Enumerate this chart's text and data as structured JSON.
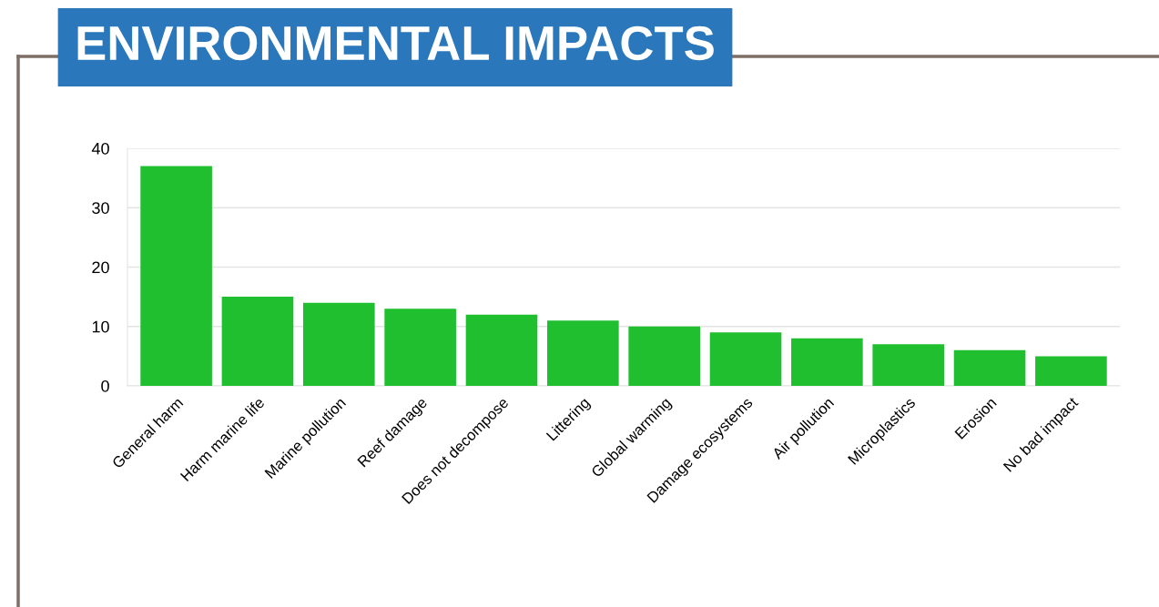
{
  "chart_data": {
    "type": "bar",
    "title": "ENVIRONMENTAL IMPACTS",
    "categories": [
      "General harm",
      "Harm marine life",
      "Marine pollution",
      "Reef damage",
      "Does not decompose",
      "Littering",
      "Global warming",
      "Damage ecosystems",
      "Air pollution",
      "Microplastics",
      "Erosion",
      "No bad impact"
    ],
    "values": [
      37,
      15,
      14,
      13,
      12,
      11,
      10,
      9,
      8,
      7,
      6,
      5
    ],
    "color": "#1fbf2f",
    "ylim": [
      0,
      40
    ],
    "yticks": [
      0,
      10,
      20,
      30,
      40
    ],
    "grid": "y"
  }
}
